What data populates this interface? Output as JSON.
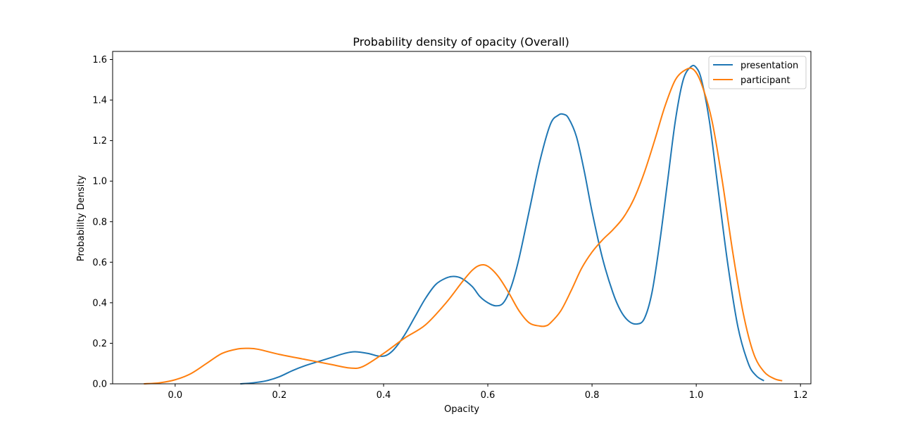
{
  "chart_data": {
    "type": "line",
    "title": "Probability density of opacity (Overall)",
    "xlabel": "Opacity",
    "ylabel": "Probability Density",
    "xlim": [
      -0.12,
      1.22
    ],
    "ylim": [
      0,
      1.64
    ],
    "x_ticks": [
      0.0,
      0.2,
      0.4,
      0.6,
      0.8,
      1.0,
      1.2
    ],
    "x_tick_labels": [
      "0.0",
      "0.2",
      "0.4",
      "0.6",
      "0.8",
      "1.0",
      "1.2"
    ],
    "y_ticks": [
      0.0,
      0.2,
      0.4,
      0.6,
      0.8,
      1.0,
      1.2,
      1.4,
      1.6
    ],
    "y_tick_labels": [
      "0.0",
      "0.2",
      "0.4",
      "0.6",
      "0.8",
      "1.0",
      "1.2",
      "1.4",
      "1.6"
    ],
    "grid": false,
    "legend_position": "top-right",
    "series": [
      {
        "name": "presentation",
        "color": "#1f77b4",
        "x": [
          0.125,
          0.15,
          0.175,
          0.2,
          0.225,
          0.25,
          0.275,
          0.3,
          0.325,
          0.345,
          0.37,
          0.39,
          0.405,
          0.42,
          0.44,
          0.46,
          0.48,
          0.5,
          0.52,
          0.535,
          0.55,
          0.57,
          0.585,
          0.6,
          0.615,
          0.63,
          0.645,
          0.66,
          0.68,
          0.7,
          0.72,
          0.735,
          0.745,
          0.755,
          0.77,
          0.785,
          0.8,
          0.82,
          0.84,
          0.855,
          0.87,
          0.885,
          0.9,
          0.915,
          0.93,
          0.945,
          0.96,
          0.975,
          0.99,
          1.0,
          1.01,
          1.025,
          1.04,
          1.06,
          1.08,
          1.1,
          1.115,
          1.13
        ],
        "y": [
          0.0,
          0.005,
          0.015,
          0.035,
          0.065,
          0.09,
          0.11,
          0.13,
          0.15,
          0.158,
          0.15,
          0.137,
          0.14,
          0.17,
          0.24,
          0.33,
          0.42,
          0.49,
          0.522,
          0.53,
          0.52,
          0.48,
          0.43,
          0.4,
          0.385,
          0.4,
          0.48,
          0.62,
          0.86,
          1.1,
          1.28,
          1.325,
          1.33,
          1.31,
          1.22,
          1.05,
          0.85,
          0.62,
          0.45,
          0.36,
          0.31,
          0.295,
          0.32,
          0.45,
          0.7,
          1.0,
          1.3,
          1.5,
          1.565,
          1.56,
          1.5,
          1.3,
          1.0,
          0.6,
          0.28,
          0.1,
          0.04,
          0.015
        ]
      },
      {
        "name": "participant",
        "color": "#ff7f0e",
        "x": [
          -0.06,
          -0.03,
          0.0,
          0.03,
          0.06,
          0.09,
          0.12,
          0.14,
          0.16,
          0.2,
          0.25,
          0.3,
          0.335,
          0.36,
          0.4,
          0.44,
          0.48,
          0.52,
          0.55,
          0.57,
          0.585,
          0.6,
          0.62,
          0.64,
          0.66,
          0.68,
          0.7,
          0.71,
          0.72,
          0.74,
          0.76,
          0.78,
          0.8,
          0.82,
          0.84,
          0.86,
          0.88,
          0.9,
          0.92,
          0.94,
          0.96,
          0.98,
          0.995,
          1.01,
          1.03,
          1.05,
          1.07,
          1.09,
          1.11,
          1.13,
          1.15,
          1.165
        ],
        "y": [
          0.0,
          0.005,
          0.02,
          0.05,
          0.1,
          0.15,
          0.172,
          0.175,
          0.17,
          0.145,
          0.12,
          0.095,
          0.078,
          0.085,
          0.15,
          0.225,
          0.29,
          0.4,
          0.5,
          0.56,
          0.585,
          0.58,
          0.53,
          0.45,
          0.36,
          0.3,
          0.285,
          0.285,
          0.3,
          0.36,
          0.46,
          0.57,
          0.65,
          0.71,
          0.76,
          0.82,
          0.91,
          1.04,
          1.2,
          1.37,
          1.5,
          1.55,
          1.55,
          1.48,
          1.3,
          1.0,
          0.65,
          0.35,
          0.15,
          0.06,
          0.025,
          0.015
        ]
      }
    ]
  }
}
